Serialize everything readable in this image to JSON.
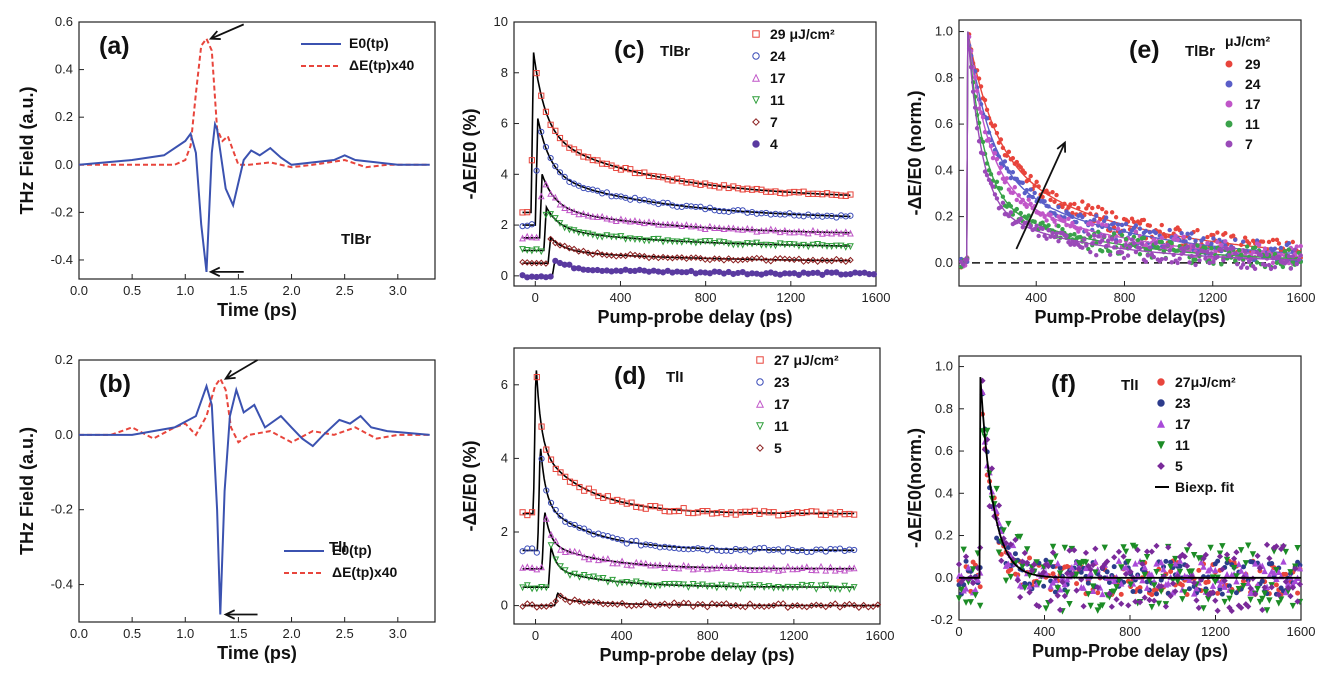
{
  "colors": {
    "ref_blue": "#3b52b0",
    "dE_red": "#e8453c",
    "fit": "#000000",
    "fluence_colors": [
      "#e8453c",
      "#3b4cb8",
      "#c056c8",
      "#2e9e3a",
      "#8b1e1e",
      "#5a3aa0"
    ],
    "fluence_colors_f": [
      "#e8453c",
      "#2d3c8c",
      "#a84ad8",
      "#1c8c26",
      "#7a2a9a"
    ]
  },
  "chart_data": [
    {
      "id": "a",
      "type": "line",
      "panel_label": "(a)",
      "sample": "TlBr",
      "xlabel": "Time (ps)",
      "ylabel": "THz Field (a.u.)",
      "xlim": [
        0,
        3.35
      ],
      "ylim": [
        -0.48,
        0.6
      ],
      "xticks": [
        0.0,
        0.5,
        1.0,
        1.5,
        2.0,
        2.5,
        3.0
      ],
      "xtick_labels": [
        "0.0",
        "0.5",
        "1.0",
        "1.5",
        "2.0",
        "2.5",
        "3.0"
      ],
      "yticks": [
        -0.4,
        -0.2,
        0.0,
        0.2,
        0.4,
        0.6
      ],
      "ytick_labels": [
        "-0.4",
        "-0.2",
        "0.0",
        "0.2",
        "0.4",
        "0.6"
      ],
      "legend": [
        "E0(tp)",
        "ΔE(tp)x40"
      ],
      "legend_position": "top-right",
      "annotations": [
        "arrow at peak of ΔE (~1.2 ps, 0.53)",
        "arrow at minimum of E0 (~1.2 ps, -0.45)"
      ],
      "series": [
        {
          "name": "E0(tp)",
          "style": "solid",
          "x": [
            0.0,
            0.5,
            0.8,
            1.0,
            1.05,
            1.1,
            1.15,
            1.2,
            1.25,
            1.28,
            1.3,
            1.38,
            1.45,
            1.55,
            1.62,
            1.7,
            1.8,
            1.9,
            2.0,
            2.2,
            2.4,
            2.5,
            2.6,
            2.8,
            3.0,
            3.3
          ],
          "y": [
            0.0,
            0.02,
            0.04,
            0.1,
            0.13,
            0.05,
            -0.25,
            -0.45,
            0.05,
            0.17,
            0.15,
            -0.1,
            -0.17,
            0.02,
            0.06,
            0.04,
            0.07,
            0.03,
            0.0,
            0.01,
            0.02,
            0.04,
            0.02,
            0.01,
            0.0,
            0.0
          ]
        },
        {
          "name": "ΔE(tp)x40",
          "style": "dashed",
          "x": [
            0.0,
            0.9,
            1.0,
            1.05,
            1.1,
            1.15,
            1.2,
            1.25,
            1.3,
            1.35,
            1.4,
            1.45,
            1.5,
            1.6,
            1.8,
            2.0,
            2.2,
            2.5,
            2.7,
            2.9,
            3.3
          ],
          "y": [
            0.0,
            0.0,
            0.02,
            0.08,
            0.3,
            0.5,
            0.53,
            0.48,
            0.15,
            0.1,
            0.12,
            0.06,
            0.0,
            0.0,
            0.01,
            -0.01,
            0.0,
            0.02,
            -0.01,
            0.0,
            0.0
          ]
        }
      ]
    },
    {
      "id": "b",
      "type": "line",
      "panel_label": "(b)",
      "sample": "TlI",
      "xlabel": "Time (ps)",
      "ylabel": "THz Field (a.u.)",
      "xlim": [
        0,
        3.35
      ],
      "ylim": [
        -0.5,
        0.2
      ],
      "xticks": [
        0.0,
        0.5,
        1.0,
        1.5,
        2.0,
        2.5,
        3.0
      ],
      "xtick_labels": [
        "0.0",
        "0.5",
        "1.0",
        "1.5",
        "2.0",
        "2.5",
        "3.0"
      ],
      "yticks": [
        -0.4,
        -0.2,
        0.0,
        0.2
      ],
      "ytick_labels": [
        "-0.4",
        "-0.2",
        "0.0",
        "0.2"
      ],
      "legend": [
        "E0(tp)",
        "ΔE(tp)x40"
      ],
      "legend_position": "bottom-right",
      "annotations": [
        "arrow at peak of ΔE (~1.35 ps, 0.15)",
        "arrow at minimum of E0 (~1.33 ps, -0.48)"
      ],
      "series": [
        {
          "name": "E0(tp)",
          "style": "solid",
          "x": [
            0.0,
            0.5,
            0.9,
            1.1,
            1.2,
            1.25,
            1.3,
            1.33,
            1.37,
            1.42,
            1.48,
            1.55,
            1.65,
            1.75,
            1.9,
            2.0,
            2.1,
            2.2,
            2.3,
            2.45,
            2.55,
            2.65,
            2.75,
            2.9,
            3.3
          ],
          "y": [
            0.0,
            0.0,
            0.02,
            0.05,
            0.13,
            0.08,
            -0.2,
            -0.48,
            -0.15,
            0.05,
            0.12,
            0.06,
            0.08,
            0.02,
            0.05,
            0.02,
            -0.01,
            -0.03,
            0.0,
            0.04,
            0.03,
            0.05,
            0.02,
            0.01,
            0.0
          ]
        },
        {
          "name": "ΔE(tp)x40",
          "style": "dashed",
          "x": [
            0.0,
            0.3,
            0.5,
            0.7,
            0.9,
            1.0,
            1.1,
            1.2,
            1.28,
            1.33,
            1.38,
            1.43,
            1.5,
            1.6,
            1.8,
            2.0,
            2.2,
            2.4,
            2.6,
            2.8,
            3.0,
            3.3
          ],
          "y": [
            0.0,
            0.0,
            0.02,
            -0.01,
            0.02,
            0.03,
            0.0,
            0.05,
            0.13,
            0.15,
            0.12,
            0.02,
            -0.02,
            0.0,
            0.01,
            -0.02,
            0.01,
            0.0,
            0.02,
            -0.01,
            0.0,
            0.0
          ]
        }
      ]
    },
    {
      "id": "c",
      "type": "scatter",
      "panel_label": "(c)",
      "sample": "TlBr",
      "xlabel": "Pump-probe delay (ps)",
      "ylabel": "-ΔE/E0 (%)",
      "xlim": [
        -100,
        1600
      ],
      "ylim": [
        -0.4,
        10
      ],
      "xticks": [
        0,
        400,
        800,
        1200,
        1600
      ],
      "xtick_labels": [
        "0",
        "400",
        "800",
        "1200",
        "1600"
      ],
      "yticks": [
        0,
        2,
        4,
        6,
        8,
        10
      ],
      "ytick_labels": [
        "0",
        "2",
        "4",
        "6",
        "8",
        "10"
      ],
      "legend_position": "top-right",
      "legend_unit": "μJ/cm²",
      "series": [
        {
          "name": "29",
          "marker": "square",
          "x_onset": -20,
          "baseline": 2.5,
          "peak": 8.8,
          "plateau": 3.0,
          "end": 1480
        },
        {
          "name": "24",
          "marker": "circle",
          "x_onset": 0,
          "baseline": 2.0,
          "peak": 6.2,
          "plateau": 2.2,
          "end": 1480
        },
        {
          "name": "17",
          "marker": "triangle-up",
          "x_onset": 20,
          "baseline": 1.5,
          "peak": 4.0,
          "plateau": 1.6,
          "end": 1480
        },
        {
          "name": "11",
          "marker": "triangle-down",
          "x_onset": 40,
          "baseline": 1.0,
          "peak": 2.7,
          "plateau": 1.1,
          "end": 1480
        },
        {
          "name": "7",
          "marker": "diamond",
          "x_onset": 60,
          "baseline": 0.5,
          "peak": 1.5,
          "plateau": 0.55,
          "end": 1480
        },
        {
          "name": "4",
          "marker": "star",
          "x_onset": 80,
          "baseline": 0.0,
          "peak": 0.6,
          "plateau": 0.05,
          "end": 1600
        }
      ]
    },
    {
      "id": "d",
      "type": "scatter",
      "panel_label": "(d)",
      "sample": "TlI",
      "xlabel": "Pump-probe delay (ps)",
      "ylabel": "-ΔE/E0 (%)",
      "xlim": [
        -100,
        1600
      ],
      "ylim": [
        -0.5,
        7
      ],
      "xticks": [
        0,
        400,
        800,
        1200,
        1600
      ],
      "xtick_labels": [
        "0",
        "400",
        "800",
        "1200",
        "1600"
      ],
      "yticks": [
        0,
        2,
        4,
        6
      ],
      "ytick_labels": [
        "0",
        "2",
        "4",
        "6"
      ],
      "legend_position": "top-right",
      "legend_unit": "μJ/cm²",
      "series": [
        {
          "name": "27",
          "marker": "square",
          "x_onset": -10,
          "baseline": 2.5,
          "peak": 6.6,
          "plateau": 2.5,
          "end": 1480
        },
        {
          "name": "23",
          "marker": "circle",
          "x_onset": 10,
          "baseline": 1.5,
          "peak": 4.4,
          "plateau": 1.5,
          "end": 1480
        },
        {
          "name": "17",
          "marker": "triangle-up",
          "x_onset": 30,
          "baseline": 1.0,
          "peak": 2.6,
          "plateau": 1.0,
          "end": 1480
        },
        {
          "name": "11",
          "marker": "triangle-down",
          "x_onset": 60,
          "baseline": 0.5,
          "peak": 1.6,
          "plateau": 0.5,
          "end": 1480
        },
        {
          "name": "5",
          "marker": "diamond",
          "x_onset": 90,
          "baseline": 0.0,
          "peak": 0.35,
          "plateau": 0.0,
          "end": 1600
        }
      ]
    },
    {
      "id": "e",
      "type": "scatter",
      "panel_label": "(e)",
      "sample": "TlBr",
      "xlabel": "Pump-Probe delay(ps)",
      "ylabel": "-ΔE/E0 (norm.)",
      "xlim": [
        50,
        1600
      ],
      "ylim": [
        -0.1,
        1.05
      ],
      "xticks": [
        400,
        800,
        1200,
        1600
      ],
      "xtick_labels": [
        "400",
        "800",
        "1200",
        "1600"
      ],
      "yticks": [
        0.0,
        0.2,
        0.4,
        0.6,
        0.8,
        1.0
      ],
      "ytick_labels": [
        "0.0",
        "0.2",
        "0.4",
        "0.6",
        "0.8",
        "1.0"
      ],
      "legend_position": "top-right",
      "legend_unit": "μJ/cm²",
      "annotations": [
        "arrow indicating increasing fluence",
        "dashed zero line"
      ],
      "series": [
        {
          "name": "29",
          "onset": 90,
          "tau_fast": 120,
          "amp_fast": 0.55,
          "tau_slow": 700,
          "amp_slow": 0.45
        },
        {
          "name": "24",
          "onset": 90,
          "tau_fast": 100,
          "amp_fast": 0.6,
          "tau_slow": 650,
          "amp_slow": 0.4
        },
        {
          "name": "17",
          "onset": 90,
          "tau_fast": 90,
          "amp_fast": 0.65,
          "tau_slow": 600,
          "amp_slow": 0.35
        },
        {
          "name": "11",
          "onset": 90,
          "tau_fast": 70,
          "amp_fast": 0.72,
          "tau_slow": 550,
          "amp_slow": 0.28
        },
        {
          "name": "7",
          "onset": 90,
          "tau_fast": 60,
          "amp_fast": 0.75,
          "tau_slow": 500,
          "amp_slow": 0.25
        }
      ]
    },
    {
      "id": "f",
      "type": "scatter",
      "panel_label": "(f)",
      "sample": "TlI",
      "xlabel": "Pump-Probe delay (ps)",
      "ylabel": "-ΔE/E0(norm.)",
      "xlim": [
        0,
        1600
      ],
      "ylim": [
        -0.2,
        1.05
      ],
      "xticks": [
        0,
        400,
        800,
        1200,
        1600
      ],
      "xtick_labels": [
        "0",
        "400",
        "800",
        "1200",
        "1600"
      ],
      "yticks": [
        -0.2,
        0.0,
        0.2,
        0.4,
        0.6,
        0.8,
        1.0
      ],
      "ytick_labels": [
        "-0.2",
        "0.0",
        "0.2",
        "0.4",
        "0.6",
        "0.8",
        "1.0"
      ],
      "legend_position": "top-right",
      "legend_unit": "μJ/cm²",
      "legend_fit": "Biexp. fit",
      "series": [
        {
          "name": "27μJ/cm²",
          "marker": "dot"
        },
        {
          "name": "23",
          "marker": "dot"
        },
        {
          "name": "17",
          "marker": "triangle-up"
        },
        {
          "name": "11",
          "marker": "triangle-down"
        },
        {
          "name": "5",
          "marker": "diamond"
        }
      ],
      "fit": {
        "onset": 100,
        "tau_fast": 60,
        "amp_fast": 0.95
      }
    }
  ]
}
